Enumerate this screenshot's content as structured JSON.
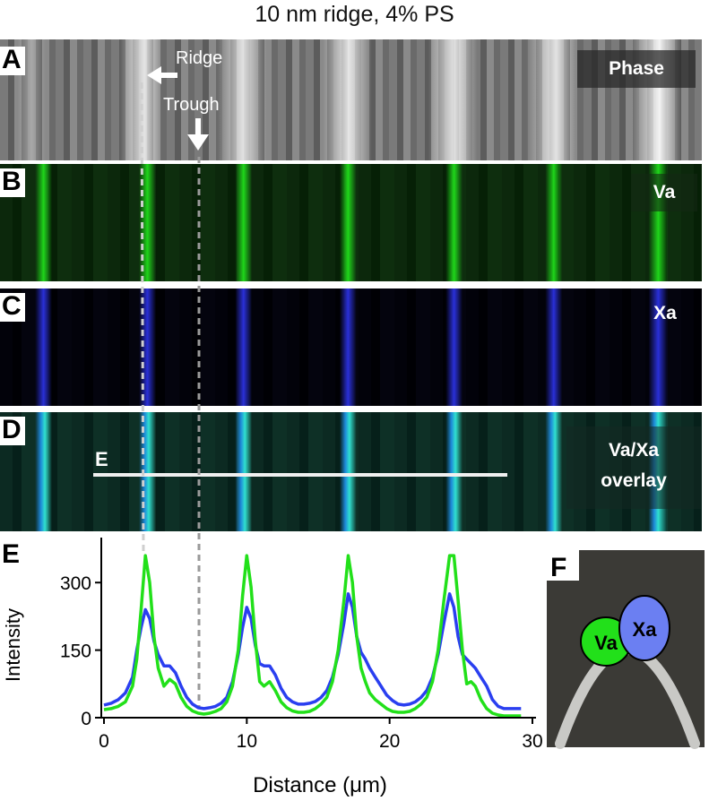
{
  "title": "10 nm ridge, 4% PS",
  "panels": {
    "A": {
      "label": "A",
      "tag": "Phase"
    },
    "B": {
      "label": "B",
      "tag": "Va"
    },
    "C": {
      "label": "C",
      "tag": "Xa"
    },
    "D": {
      "label": "D",
      "tag_line1": "Va/Xa",
      "tag_line2": "overlay",
      "line_label": "E"
    },
    "E": {
      "label": "E"
    },
    "F": {
      "label": "F",
      "protein1": "Va",
      "protein2": "Xa"
    }
  },
  "annotations": {
    "ridge": "Ridge",
    "trough": "Trough"
  },
  "colors": {
    "va": "#22e01a",
    "xa": "#2a3ff0",
    "ridge_line": "#cfcfcf",
    "trough_line": "#9a9a9a"
  },
  "chart_data": {
    "type": "line",
    "xlabel": "Distance (μm)",
    "ylabel": "Intensity",
    "xlim": [
      0,
      30
    ],
    "ylim": [
      0,
      380
    ],
    "xticks": [
      "0",
      "10",
      "20",
      "30"
    ],
    "yticks": [
      "0",
      "150",
      "300"
    ],
    "series": [
      {
        "color": "green",
        "x": [
          0,
          0.5,
          1,
          1.5,
          2,
          2.3,
          2.6,
          2.9,
          3.2,
          3.5,
          3.8,
          4.2,
          4.6,
          5,
          5.4,
          5.8,
          6.2,
          6.6,
          7,
          7.4,
          7.8,
          8.2,
          8.6,
          9,
          9.4,
          9.7,
          10,
          10.3,
          10.6,
          10.9,
          11.2,
          11.6,
          12,
          12.4,
          12.8,
          13.2,
          13.6,
          14,
          14.4,
          14.8,
          15.2,
          15.6,
          16,
          16.4,
          16.8,
          17.1,
          17.4,
          17.7,
          18,
          18.3,
          18.6,
          19,
          19.4,
          19.8,
          20.2,
          20.6,
          21,
          21.4,
          21.8,
          22.2,
          22.6,
          23,
          23.4,
          23.8,
          24.2,
          24.5,
          24.8,
          25.1,
          25.4,
          25.7,
          26,
          26.4,
          26.8,
          27.2,
          27.6,
          28,
          28.4,
          28.8,
          29.2
        ],
        "y": [
          18,
          20,
          25,
          35,
          70,
          130,
          240,
          360,
          300,
          180,
          110,
          70,
          85,
          75,
          45,
          25,
          15,
          10,
          8,
          10,
          14,
          20,
          35,
          70,
          150,
          270,
          360,
          290,
          170,
          80,
          70,
          80,
          60,
          35,
          22,
          15,
          12,
          12,
          14,
          20,
          30,
          45,
          80,
          150,
          260,
          360,
          300,
          180,
          110,
          80,
          55,
          40,
          30,
          20,
          14,
          12,
          12,
          14,
          20,
          30,
          45,
          80,
          150,
          260,
          360,
          360,
          260,
          150,
          75,
          80,
          70,
          40,
          20,
          10,
          6,
          4,
          4,
          4,
          4
        ]
      },
      {
        "color": "blue",
        "x": [
          0,
          0.5,
          1,
          1.5,
          2,
          2.3,
          2.6,
          2.9,
          3.2,
          3.5,
          3.8,
          4.2,
          4.6,
          5,
          5.4,
          5.8,
          6.2,
          6.6,
          7,
          7.4,
          7.8,
          8.2,
          8.6,
          9,
          9.4,
          9.7,
          10,
          10.3,
          10.6,
          10.9,
          11.2,
          11.6,
          12,
          12.4,
          12.8,
          13.2,
          13.6,
          14,
          14.4,
          14.8,
          15.2,
          15.6,
          16,
          16.4,
          16.8,
          17.1,
          17.4,
          17.7,
          18,
          18.3,
          18.6,
          19,
          19.4,
          19.8,
          20.2,
          20.6,
          21,
          21.4,
          21.8,
          22.2,
          22.6,
          23,
          23.4,
          23.8,
          24.2,
          24.5,
          24.8,
          25.1,
          25.4,
          25.7,
          26,
          26.4,
          26.8,
          27.2,
          27.6,
          28,
          28.4,
          28.8,
          29.2
        ],
        "y": [
          28,
          32,
          40,
          55,
          90,
          150,
          200,
          240,
          220,
          170,
          140,
          115,
          115,
          100,
          70,
          45,
          30,
          22,
          20,
          22,
          25,
          32,
          45,
          80,
          140,
          200,
          245,
          220,
          160,
          120,
          115,
          115,
          95,
          65,
          45,
          35,
          30,
          30,
          32,
          36,
          45,
          60,
          90,
          140,
          210,
          275,
          245,
          180,
          145,
          130,
          110,
          90,
          70,
          50,
          38,
          30,
          28,
          30,
          35,
          45,
          60,
          90,
          140,
          210,
          275,
          245,
          180,
          140,
          130,
          120,
          110,
          90,
          70,
          40,
          25,
          20,
          20,
          20,
          20
        ]
      }
    ]
  }
}
